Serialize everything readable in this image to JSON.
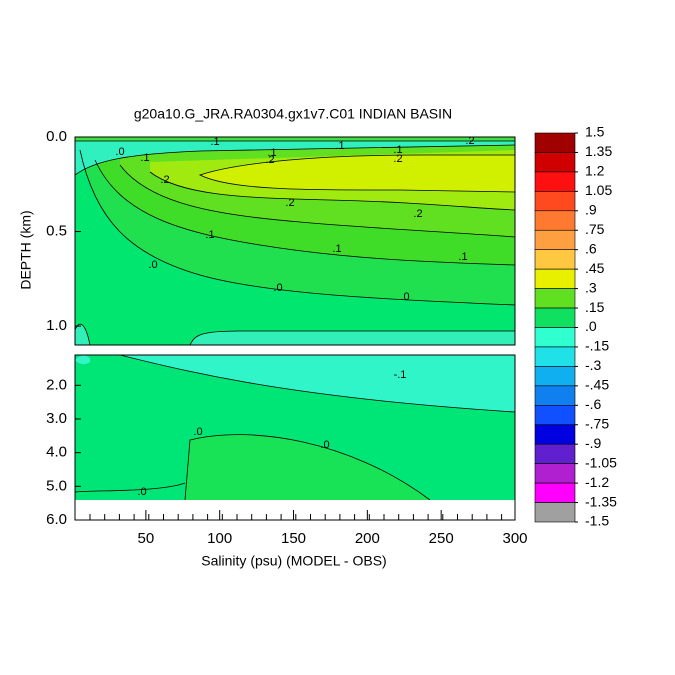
{
  "chart_data": [
    {
      "type": "contour",
      "title": "g20a10.G_JRA.RA0304.gx1v7.C01 INDIAN BASIN",
      "y_label": "DEPTH (km)",
      "xlim": [
        2,
        300
      ],
      "ylim": [
        0,
        1.1
      ],
      "yticks": [
        {
          "value": 0,
          "label": "0.0"
        },
        0.5,
        {
          "value": 1,
          "label": "1.0"
        }
      ],
      "contour_labels": [
        ".1",
        ".1",
        ".2",
        ".0",
        ".1",
        ".1",
        ".1",
        ".2",
        ".2",
        ".2",
        ".2",
        ".2",
        ".1",
        ".1",
        ".1",
        ".0",
        ".0",
        ".0"
      ],
      "colorbar": {
        "lim": [
          -1.5,
          1.5
        ],
        "ticks": [
          1.5,
          1.35,
          1.2,
          1.05,
          {
            "value": 0.9,
            "label": ".9"
          },
          {
            "value": 0.75,
            "label": ".75"
          },
          {
            "value": 0.6,
            "label": ".6"
          },
          {
            "value": 0.45,
            "label": ".45"
          },
          {
            "value": 0.3,
            "label": ".3"
          },
          {
            "value": 0.15,
            "label": ".15"
          },
          {
            "value": 0,
            "label": ".0"
          },
          {
            "value": -0.15,
            "label": "-.15"
          },
          {
            "value": -0.3,
            "label": "-.3"
          },
          {
            "value": -0.45,
            "label": "-.45"
          },
          {
            "value": -0.6,
            "label": "-.6"
          },
          {
            "value": -0.75,
            "label": "-.75"
          },
          {
            "value": -0.9,
            "label": "-.9"
          },
          -1.05,
          -1.2,
          -1.35,
          -1.5
        ],
        "colors": [
          "#a00000",
          "#d00000",
          "#ff1010",
          "#ff4a20",
          "#ff7a30",
          "#ffa040",
          "#ffc840",
          "#e8f000",
          "#60e020",
          "#10e060",
          "#30ffd0",
          "#20e0e8",
          "#10b0f0",
          "#1080f0",
          "#1050ff",
          "#0000e0",
          "#6020d0",
          "#b020d0",
          "#ff00ff",
          "#a0a0a0"
        ]
      }
    },
    {
      "type": "contour",
      "x_label": "Salinity (psu) (MODEL - OBS)",
      "xlim": [
        2,
        300
      ],
      "ylim": [
        1.1,
        6.0
      ],
      "xticks": [
        50,
        100,
        150,
        200,
        250,
        300
      ],
      "yticks": [
        {
          "value": 2,
          "label": "2.0"
        },
        {
          "value": 3,
          "label": "3.0"
        },
        {
          "value": 4,
          "label": "4.0"
        },
        {
          "value": 5,
          "label": "5.0"
        },
        {
          "value": 6,
          "label": "6.0"
        }
      ],
      "contour_labels": [
        "-.1",
        ".0",
        ".0",
        ".0"
      ]
    }
  ]
}
